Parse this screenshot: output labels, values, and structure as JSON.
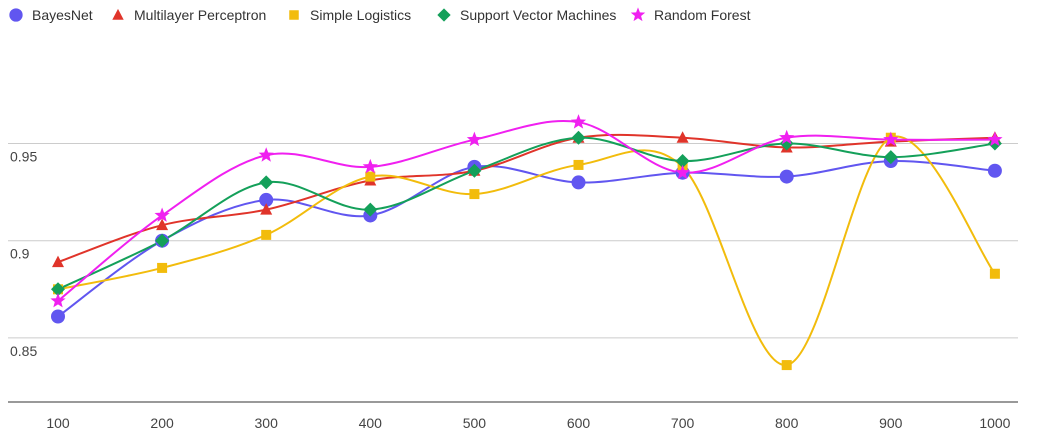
{
  "chart_data": {
    "type": "line",
    "title": "",
    "xlabel": "",
    "ylabel": "",
    "categories": [
      "100",
      "200",
      "300",
      "400",
      "500",
      "600",
      "700",
      "800",
      "900",
      "1000"
    ],
    "y_ticks": [
      "0.85",
      "0.9",
      "0.95"
    ],
    "ylim": [
      0.817,
      0.993
    ],
    "grid": "horizontal",
    "legend_position": "top-left",
    "series": [
      {
        "name": "BayesNet",
        "marker": "circle",
        "color": "#6156F0",
        "values": [
          0.861,
          0.9,
          0.921,
          0.913,
          0.938,
          0.93,
          0.935,
          0.933,
          0.941,
          0.936
        ]
      },
      {
        "name": "Multilayer Perceptron",
        "marker": "triangle",
        "color": "#E0342A",
        "values": [
          0.889,
          0.908,
          0.916,
          0.931,
          0.936,
          0.953,
          0.953,
          0.948,
          0.951,
          0.953
        ]
      },
      {
        "name": "Simple Logistics",
        "marker": "square",
        "color": "#F2BC0C",
        "values": [
          0.875,
          0.886,
          0.903,
          0.933,
          0.924,
          0.939,
          0.938,
          0.836,
          0.953,
          0.883
        ]
      },
      {
        "name": "Support Vector Machines",
        "marker": "diamond",
        "color": "#14A05A",
        "values": [
          0.875,
          0.9,
          0.93,
          0.916,
          0.936,
          0.953,
          0.941,
          0.95,
          0.943,
          0.95
        ]
      },
      {
        "name": "Random Forest",
        "marker": "star",
        "color": "#F020F0",
        "values": [
          0.869,
          0.913,
          0.944,
          0.938,
          0.952,
          0.961,
          0.935,
          0.953,
          0.952,
          0.952
        ]
      }
    ]
  }
}
